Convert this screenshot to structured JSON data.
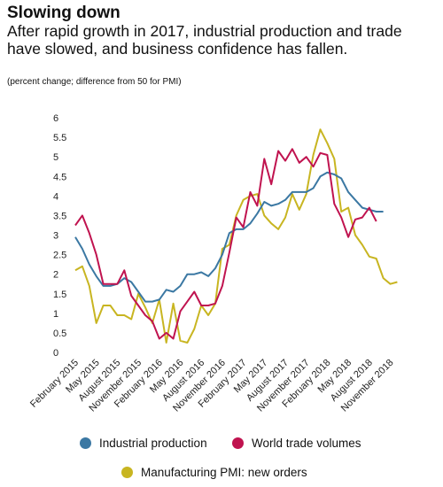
{
  "chart_data": {
    "type": "line",
    "title": "Slowing down",
    "subtitle": "After rapid growth in 2017, industrial production and trade have slowed, and business confidence has fallen.",
    "note": "(percent change; difference from 50 for PMI)",
    "ylim": [
      0,
      6
    ],
    "y_ticks": [
      "0",
      "0.5",
      "1",
      "1.5",
      "2",
      "2.5",
      "3",
      "3.5",
      "4",
      "4.5",
      "5",
      "5.5",
      "6"
    ],
    "x_start": "2015-02",
    "x_tick_labels": [
      "February 2015",
      "May 2015",
      "August 2015",
      "November 2015",
      "February 2016",
      "May 2016",
      "August 2016",
      "November 2016",
      "February 2017",
      "May 2017",
      "August 2017",
      "November 2017",
      "February 2018",
      "May 2018",
      "August 2018",
      "November 2018"
    ],
    "legend_position": "bottom",
    "series": [
      {
        "name": "Industrial production",
        "color": "#3b78a3",
        "values": [
          2.95,
          2.65,
          2.25,
          1.95,
          1.7,
          1.7,
          1.75,
          1.9,
          1.8,
          1.55,
          1.3,
          1.3,
          1.35,
          1.6,
          1.55,
          1.7,
          2.0,
          2.0,
          2.05,
          1.95,
          2.15,
          2.5,
          3.05,
          3.15,
          3.15,
          3.3,
          3.55,
          3.85,
          3.75,
          3.8,
          3.9,
          4.1,
          4.1,
          4.1,
          4.2,
          4.5,
          4.6,
          4.55,
          4.45,
          4.1,
          3.9,
          3.7,
          3.65,
          3.6,
          3.6
        ]
      },
      {
        "name": "World trade volumes",
        "color": "#c0134f",
        "values": [
          3.25,
          3.5,
          3.05,
          2.5,
          1.75,
          1.75,
          1.75,
          2.1,
          1.45,
          1.2,
          0.95,
          0.8,
          0.35,
          0.5,
          0.35,
          1.05,
          1.3,
          1.55,
          1.2,
          1.2,
          1.25,
          1.7,
          2.55,
          3.45,
          3.2,
          4.1,
          3.75,
          4.95,
          4.3,
          5.15,
          4.9,
          5.2,
          4.85,
          5.0,
          4.75,
          5.1,
          5.05,
          3.8,
          3.45,
          2.95,
          3.4,
          3.45,
          3.7,
          3.35
        ]
      },
      {
        "name": "Manufacturing PMI: new orders",
        "color": "#c8b521",
        "values": [
          2.1,
          2.2,
          1.7,
          0.75,
          1.2,
          1.2,
          0.95,
          0.95,
          0.85,
          1.5,
          1.15,
          0.75,
          1.35,
          0.25,
          1.25,
          0.3,
          0.25,
          0.6,
          1.2,
          0.95,
          1.25,
          2.65,
          2.75,
          3.5,
          3.9,
          4.0,
          4.05,
          3.5,
          3.3,
          3.15,
          3.45,
          4.05,
          3.65,
          4.05,
          5.05,
          5.7,
          5.35,
          4.95,
          3.6,
          3.7,
          3.0,
          2.75,
          2.45,
          2.4,
          1.9,
          1.75,
          1.8
        ]
      }
    ]
  }
}
